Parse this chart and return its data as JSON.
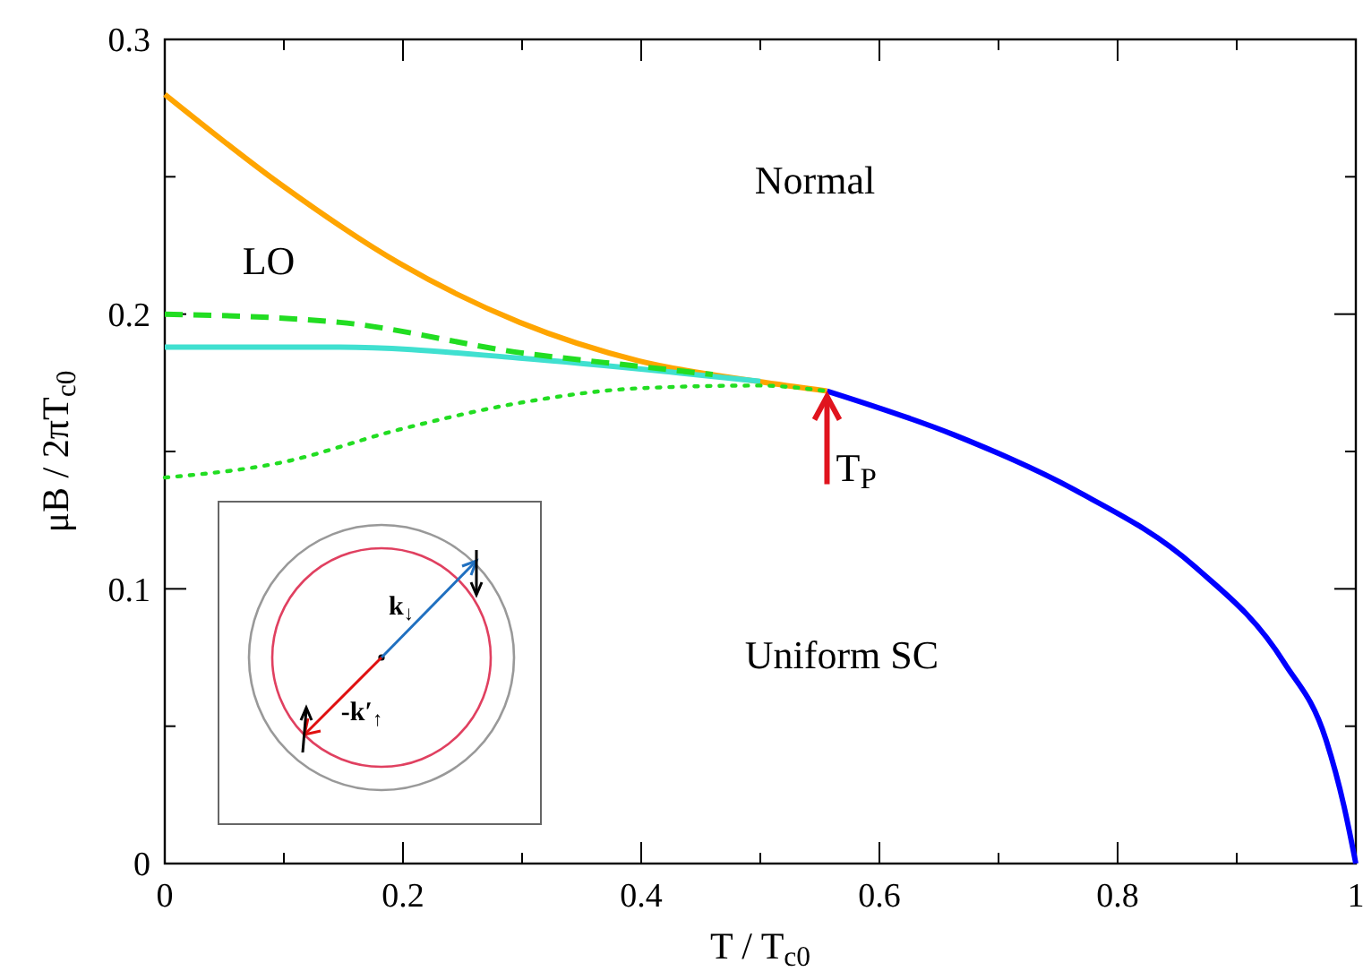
{
  "chart_data": {
    "type": "line",
    "xlabel": "T / T$_{c0}$",
    "ylabel": "μB / 2πT$_{c0}$",
    "xlim": [
      0,
      1
    ],
    "ylim": [
      0,
      0.3
    ],
    "xticks": [
      0,
      {
        "value": 0.1,
        "label": null
      },
      0.2,
      {
        "value": 0.3,
        "label": null
      },
      0.4,
      {
        "value": 0.5,
        "label": null
      },
      0.6,
      {
        "value": 0.7,
        "label": null
      },
      0.8,
      {
        "value": 0.9,
        "label": null
      },
      1
    ],
    "yticks": [
      0,
      {
        "value": 0.05,
        "label": null
      },
      0.1,
      {
        "value": 0.15,
        "label": null
      },
      0.2,
      {
        "value": 0.25,
        "label": null
      },
      0.3
    ],
    "grid": false,
    "marker": "none",
    "series": [
      {
        "color": "#ffa500",
        "line_style": "solid",
        "x": [
          0,
          0.098,
          0.197,
          0.298,
          0.398,
          0.498,
          0.556
        ],
        "values": [
          0.28,
          0.247,
          0.2185,
          0.197,
          0.183,
          0.1755,
          0.172
        ]
      },
      {
        "color": "#0000ff",
        "line_style": "solid",
        "x": [
          0.556,
          0.663,
          0.764,
          0.865,
          0.94,
          0.975,
          0.99,
          1
        ],
        "values": [
          0.172,
          0.156,
          0.136,
          0.108,
          0.073,
          0.045,
          0.021,
          0
        ]
      },
      {
        "color": "#40e0d0",
        "line_style": "solid",
        "x": [
          0,
          0.147,
          0.298,
          0.423,
          0.5
        ],
        "values": [
          0.188,
          0.188,
          0.184,
          0.179,
          0.1755
        ]
      },
      {
        "color": "#22dd22",
        "line_style": "dashed",
        "x": [
          0,
          0.147,
          0.298,
          0.398,
          0.46
        ],
        "values": [
          0.2,
          0.197,
          0.186,
          0.181,
          0.178
        ]
      },
      {
        "color": "#22dd22",
        "line_style": "dotted",
        "x": [
          0,
          0.098,
          0.197,
          0.298,
          0.398,
          0.498,
          0.556
        ],
        "values": [
          0.1405,
          0.146,
          0.158,
          0.1677,
          0.173,
          0.174,
          0.172
        ]
      }
    ],
    "annotations": [
      "Normal",
      "LO",
      "Uniform SC",
      {
        "text": "T$_{P}$",
        "x": 0.556,
        "y": 0.172
      },
      "k$_{↓}$",
      "-k′$_{↑}$"
    ]
  }
}
